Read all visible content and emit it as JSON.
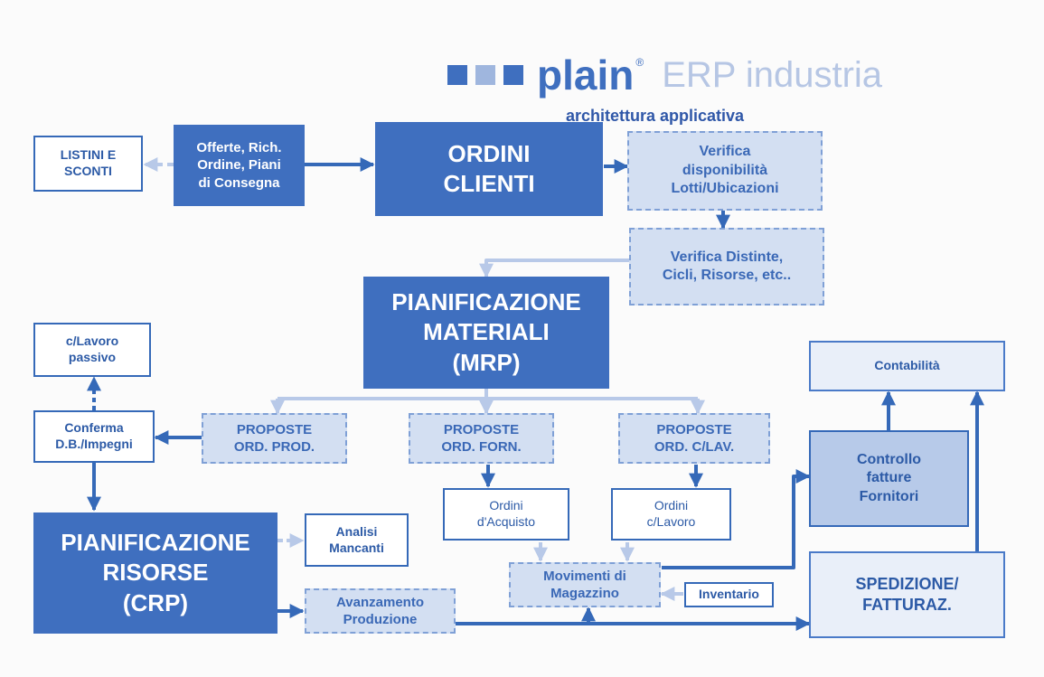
{
  "header": {
    "brand": "plain",
    "registered": "®",
    "product": "ERP industria",
    "subtitle": "architettura applicativa",
    "square_colors": [
      "#3f6fbf",
      "#9fb6de",
      "#3f6fbf"
    ]
  },
  "nodes": {
    "listini": "LISTINI E\nSCONTI",
    "offerte": "Offerte, Rich.\nOrdine, Piani\ndi Consegna",
    "ordini_clienti": "ORDINI\nCLIENTI",
    "verifica_disp": "Verifica\ndisponibilità\nLotti/Ubicazioni",
    "verifica_distinte": "Verifica Distinte,\nCicli, Risorse, etc..",
    "mrp": "PIANIFICAZIONE\nMATERIALI\n(MRP)",
    "clavoro_passivo": "c/Lavoro\npassivo",
    "conferma": "Conferma\nD.B./Impegni",
    "proposte_prod": "PROPOSTE\nORD. PROD.",
    "proposte_forn": "PROPOSTE\nORD. FORN.",
    "proposte_clav": "PROPOSTE\nORD. C/LAV.",
    "contabilita": "Contabilità",
    "controllo_fatture": "Controllo\nfatture\nFornitori",
    "ordini_acquisto": "Ordini\nd'Acquisto",
    "ordini_clavoro": "Ordini\nc/Lavoro",
    "crp": "PIANIFICAZIONE\nRISORSE\n(CRP)",
    "analisi_mancanti": "Analisi\nMancanti",
    "movimenti": "Movimenti di\nMagazzino",
    "inventario": "Inventario",
    "avanzamento": "Avanzamento\nProduzione",
    "spedizione": "SPEDIZIONE/\nFATTURAZ."
  },
  "colors": {
    "dark_blue": "#3f6fbf",
    "light_blue": "#d3dff2",
    "arrow": "#3569b8",
    "arrow_light": "#b8c9e8"
  }
}
